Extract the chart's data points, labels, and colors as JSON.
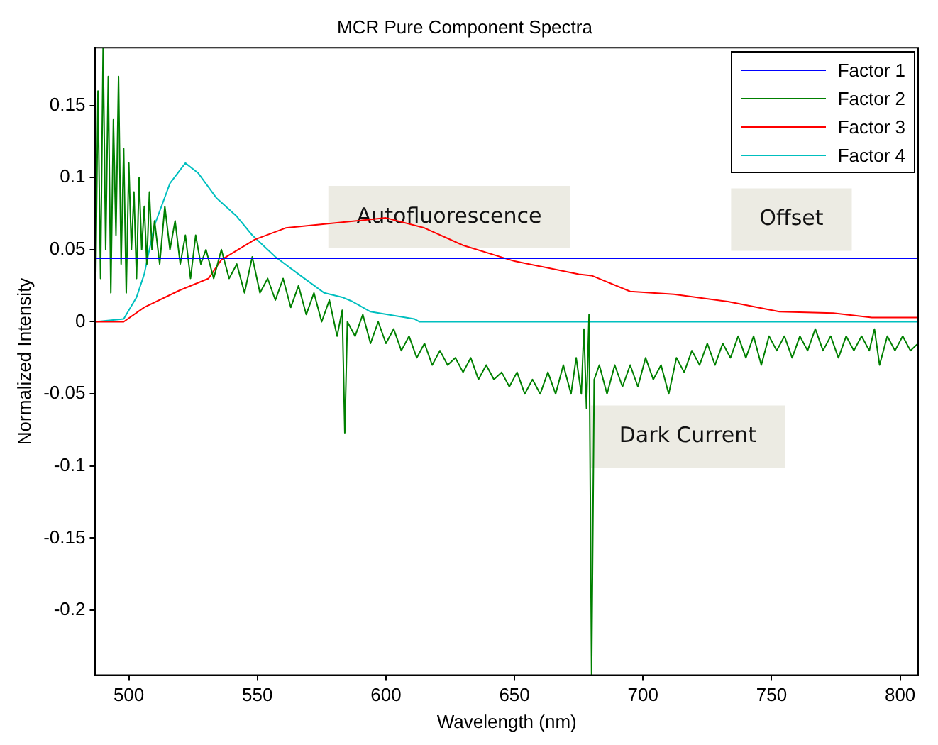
{
  "chart_data": {
    "type": "line",
    "title": "MCR Pure Component Spectra",
    "xlabel": "Wavelength (nm)",
    "ylabel": "Normalized Intensity",
    "xlim": [
      487,
      807
    ],
    "xticks": [
      500,
      550,
      600,
      650,
      700,
      750,
      800
    ],
    "ylim": [
      -0.245,
      0.19
    ],
    "yticks": [
      -0.2,
      -0.15,
      -0.1,
      -0.05,
      0,
      0.05,
      0.1,
      0.15
    ],
    "grid": false,
    "legend": "top right",
    "marker": "none",
    "line_style": "solid",
    "series": [
      {
        "name": "Factor 1",
        "color": "#0000ff",
        "x": [
          487,
          807
        ],
        "values": [
          0.044,
          0.044
        ]
      },
      {
        "name": "Factor 2",
        "color": "#008000",
        "x": [
          487,
          488,
          489,
          490,
          491,
          492,
          493,
          494,
          495,
          496,
          497,
          498,
          499,
          500,
          501,
          502,
          503,
          504,
          505,
          506,
          507,
          508,
          509,
          510,
          512,
          514,
          516,
          518,
          520,
          522,
          524,
          526,
          528,
          530,
          533,
          536,
          539,
          542,
          545,
          548,
          551,
          554,
          557,
          560,
          563,
          566,
          569,
          572,
          575,
          578,
          581,
          583,
          584,
          585,
          588,
          591,
          594,
          597,
          600,
          603,
          606,
          609,
          612,
          615,
          618,
          621,
          624,
          627,
          630,
          633,
          636,
          639,
          642,
          645,
          648,
          651,
          654,
          657,
          660,
          663,
          666,
          669,
          672,
          674,
          676,
          677,
          678,
          679,
          680,
          681,
          683,
          686,
          689,
          692,
          695,
          698,
          701,
          704,
          707,
          710,
          713,
          716,
          719,
          722,
          725,
          728,
          731,
          734,
          737,
          740,
          743,
          746,
          749,
          752,
          755,
          758,
          761,
          764,
          767,
          770,
          773,
          776,
          779,
          782,
          785,
          788,
          790,
          792,
          795,
          798,
          801,
          804,
          807
        ],
        "values": [
          0.01,
          0.16,
          0.03,
          0.19,
          0.05,
          0.17,
          0.02,
          0.14,
          0.06,
          0.17,
          0.04,
          0.12,
          0.02,
          0.11,
          0.05,
          0.09,
          0.03,
          0.1,
          0.05,
          0.08,
          0.04,
          0.09,
          0.05,
          0.07,
          0.04,
          0.08,
          0.05,
          0.07,
          0.04,
          0.06,
          0.03,
          0.06,
          0.04,
          0.05,
          0.03,
          0.05,
          0.03,
          0.04,
          0.02,
          0.045,
          0.02,
          0.03,
          0.015,
          0.03,
          0.01,
          0.025,
          0.005,
          0.02,
          0,
          0.015,
          -0.01,
          0.008,
          -0.077,
          0,
          -0.01,
          0.005,
          -0.015,
          0,
          -0.015,
          -0.005,
          -0.02,
          -0.01,
          -0.025,
          -0.015,
          -0.03,
          -0.02,
          -0.03,
          -0.025,
          -0.035,
          -0.025,
          -0.04,
          -0.03,
          -0.04,
          -0.035,
          -0.045,
          -0.035,
          -0.05,
          -0.04,
          -0.05,
          -0.035,
          -0.05,
          -0.03,
          -0.05,
          -0.025,
          -0.05,
          -0.005,
          -0.06,
          0.005,
          -0.245,
          -0.04,
          -0.03,
          -0.05,
          -0.03,
          -0.045,
          -0.03,
          -0.045,
          -0.025,
          -0.04,
          -0.03,
          -0.05,
          -0.025,
          -0.035,
          -0.02,
          -0.03,
          -0.015,
          -0.03,
          -0.015,
          -0.025,
          -0.01,
          -0.025,
          -0.01,
          -0.03,
          -0.01,
          -0.02,
          -0.01,
          -0.025,
          -0.01,
          -0.02,
          -0.005,
          -0.02,
          -0.01,
          -0.025,
          -0.01,
          -0.02,
          -0.01,
          -0.02,
          -0.005,
          -0.03,
          -0.01,
          -0.02,
          -0.01,
          -0.02,
          -0.015
        ]
      },
      {
        "name": "Factor 3",
        "color": "#ff0000",
        "x": [
          487,
          498,
          506,
          520,
          531,
          536,
          549,
          561,
          572,
          583,
          600,
          615,
          630,
          650,
          675,
          680,
          695,
          712,
          733,
          753,
          774,
          789,
          807
        ],
        "values": [
          0,
          0,
          0.01,
          0.022,
          0.03,
          0.043,
          0.057,
          0.065,
          0.067,
          0.069,
          0.072,
          0.065,
          0.053,
          0.042,
          0.033,
          0.032,
          0.021,
          0.019,
          0.014,
          0.007,
          0.006,
          0.003,
          0.003
        ]
      },
      {
        "name": "Factor 4",
        "color": "#00bfbf",
        "x": [
          487,
          498,
          503,
          506,
          510,
          516,
          522,
          527,
          534,
          542,
          548,
          557,
          566,
          576,
          583,
          587,
          594,
          611,
          613,
          807
        ],
        "values": [
          0,
          0.002,
          0.017,
          0.033,
          0.067,
          0.096,
          0.11,
          0.103,
          0.086,
          0.073,
          0.06,
          0.045,
          0.033,
          0.02,
          0.017,
          0.014,
          0.007,
          0.002,
          0,
          0
        ]
      }
    ],
    "annotations": [
      "Autofluorescence",
      "Offset",
      "Dark Current"
    ]
  }
}
